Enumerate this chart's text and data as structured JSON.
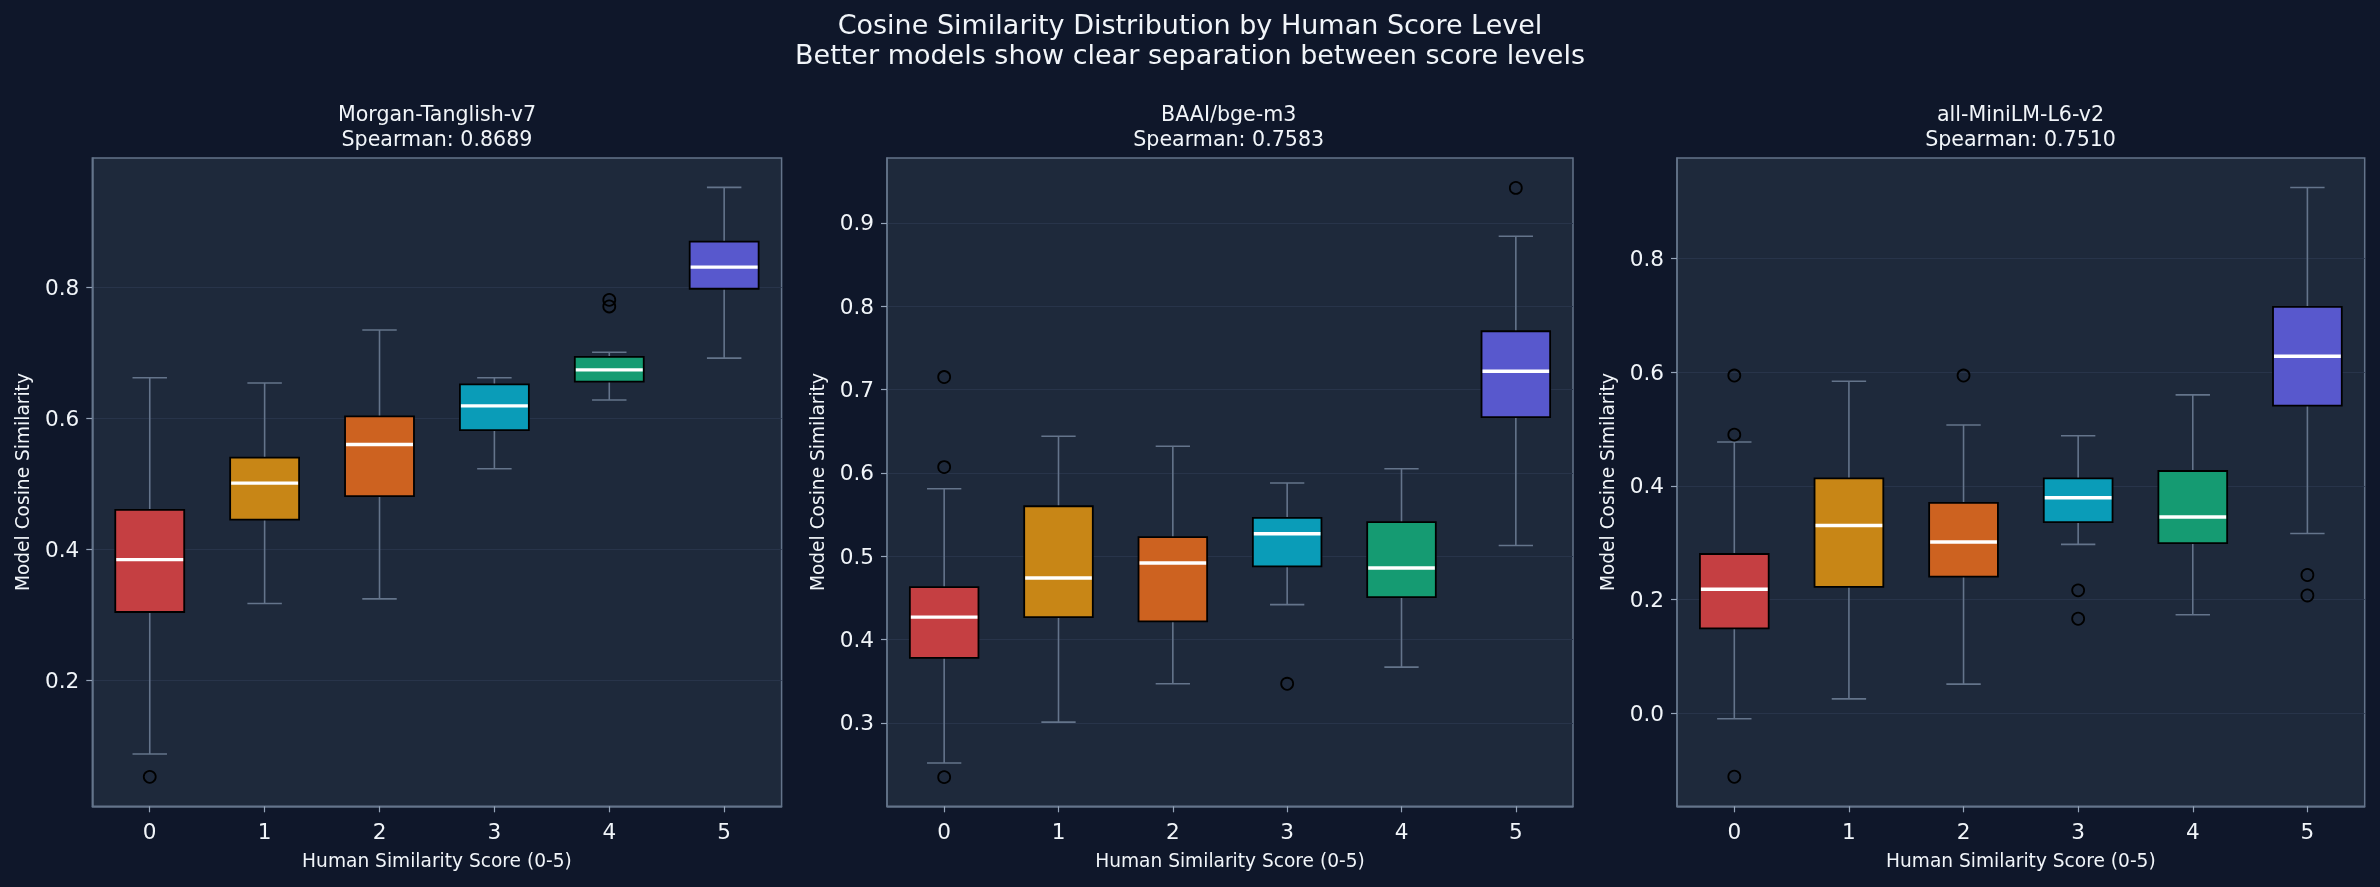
{
  "chart_data": [
    {
      "type": "other",
      "title": "Cosine Similarity Distribution by Human Score Level",
      "subtitle": "Better models show clear separation between score levels"
    },
    {
      "type": "box",
      "title": "Morgan-Tanglish-v7",
      "subtitle": "Spearman: 0.8689",
      "xlabel": "Human Similarity Score (0-5)",
      "ylabel": "Model Cosine Similarity",
      "categories": [
        "0",
        "1",
        "2",
        "3",
        "4",
        "5"
      ],
      "colors": [
        "#c53f42",
        "#c88616",
        "#cd6220",
        "#0a9cb8",
        "#159b72",
        "#5858cd"
      ],
      "boxes": [
        {
          "low": 0.087,
          "q1": 0.304,
          "median": 0.384,
          "q3": 0.46,
          "high": 0.662,
          "outliers": [
            0.052
          ]
        },
        {
          "low": 0.317,
          "q1": 0.445,
          "median": 0.501,
          "q3": 0.54,
          "high": 0.654
        },
        {
          "low": 0.324,
          "q1": 0.481,
          "median": 0.56,
          "q3": 0.603,
          "high": 0.735
        },
        {
          "low": 0.523,
          "q1": 0.582,
          "median": 0.619,
          "q3": 0.652,
          "high": 0.662
        },
        {
          "low": 0.628,
          "q1": 0.656,
          "median": 0.674,
          "q3": 0.694,
          "high": 0.701,
          "outliers": [
            0.781,
            0.771
          ]
        },
        {
          "low": 0.692,
          "q1": 0.798,
          "median": 0.831,
          "q3": 0.87,
          "high": 0.953
        }
      ],
      "ylim": [
        0.007,
        0.998
      ],
      "yticks": [
        0.2,
        0.4,
        0.6,
        0.8
      ],
      "grid": "y"
    },
    {
      "type": "box",
      "title": "BAAI/bge-m3",
      "subtitle": "Spearman: 0.7583",
      "xlabel": "Human Similarity Score (0-5)",
      "ylabel": "Model Cosine Similarity",
      "categories": [
        "0",
        "1",
        "2",
        "3",
        "4",
        "5"
      ],
      "colors": [
        "#c53f42",
        "#c88616",
        "#cd6220",
        "#0a9cb8",
        "#159b72",
        "#5858cd"
      ],
      "boxes": [
        {
          "low": 0.252,
          "q1": 0.378,
          "median": 0.427,
          "q3": 0.463,
          "high": 0.581,
          "outliers": [
            0.715,
            0.607,
            0.235
          ]
        },
        {
          "low": 0.301,
          "q1": 0.427,
          "median": 0.474,
          "q3": 0.56,
          "high": 0.644
        },
        {
          "low": 0.347,
          "q1": 0.422,
          "median": 0.492,
          "q3": 0.523,
          "high": 0.632
        },
        {
          "low": 0.442,
          "q1": 0.488,
          "median": 0.527,
          "q3": 0.546,
          "high": 0.588,
          "outliers": [
            0.347
          ]
        },
        {
          "low": 0.367,
          "q1": 0.451,
          "median": 0.486,
          "q3": 0.541,
          "high": 0.605
        },
        {
          "low": 0.513,
          "q1": 0.667,
          "median": 0.722,
          "q3": 0.77,
          "high": 0.884,
          "outliers": [
            0.942
          ]
        }
      ],
      "ylim": [
        0.2,
        0.978
      ],
      "yticks": [
        0.3,
        0.4,
        0.5,
        0.6,
        0.7,
        0.8,
        0.9
      ],
      "grid": "y"
    },
    {
      "type": "box",
      "title": "all-MiniLM-L6-v2",
      "subtitle": "Spearman: 0.7510",
      "xlabel": "Human Similarity Score (0-5)",
      "ylabel": "Model Cosine Similarity",
      "categories": [
        "0",
        "1",
        "2",
        "3",
        "4",
        "5"
      ],
      "colors": [
        "#c53f42",
        "#c88616",
        "#cd6220",
        "#0a9cb8",
        "#159b72",
        "#5858cd"
      ],
      "boxes": [
        {
          "low": -0.01,
          "q1": 0.149,
          "median": 0.218,
          "q3": 0.28,
          "high": 0.477,
          "outliers": [
            0.594,
            0.49,
            -0.112
          ]
        },
        {
          "low": 0.025,
          "q1": 0.222,
          "median": 0.33,
          "q3": 0.413,
          "high": 0.584
        },
        {
          "low": 0.051,
          "q1": 0.24,
          "median": 0.301,
          "q3": 0.37,
          "high": 0.507,
          "outliers": [
            0.594
          ]
        },
        {
          "low": 0.297,
          "q1": 0.336,
          "median": 0.379,
          "q3": 0.413,
          "high": 0.488,
          "outliers": [
            0.216,
            0.166
          ]
        },
        {
          "low": 0.173,
          "q1": 0.299,
          "median": 0.345,
          "q3": 0.426,
          "high": 0.56
        },
        {
          "low": 0.316,
          "q1": 0.541,
          "median": 0.628,
          "q3": 0.715,
          "high": 0.925,
          "outliers": [
            0.243,
            0.207
          ]
        }
      ],
      "ylim": [
        -0.164,
        0.977
      ],
      "yticks": [
        {
          "value": 0,
          "label": "0.0"
        },
        0.2,
        0.4,
        0.6,
        0.8
      ],
      "grid": "y"
    }
  ]
}
